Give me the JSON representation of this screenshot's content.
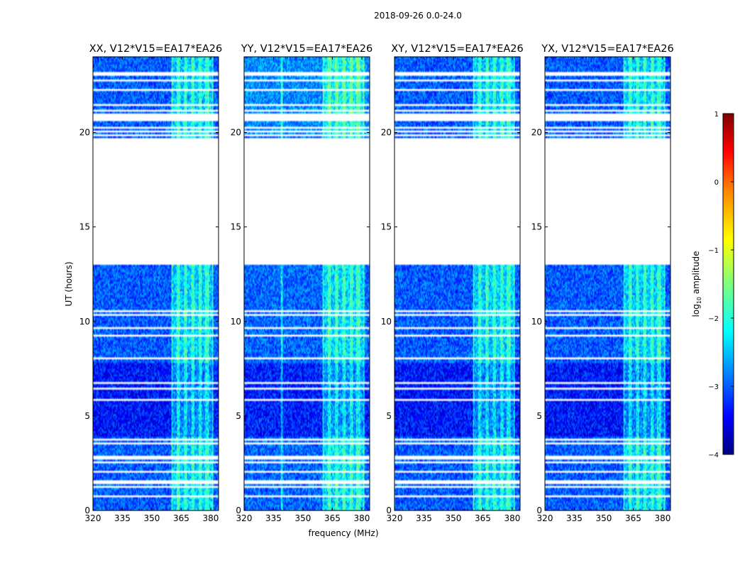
{
  "chart_data": {
    "type": "heatmap",
    "suptitle": "2018-09-26 0.0-24.0",
    "xlabel": "frequency (MHz)",
    "ylabel": "UT (hours)",
    "xlim": [
      320,
      384
    ],
    "ylim": [
      0,
      24
    ],
    "xticks": [
      "320",
      "335",
      "350",
      "365",
      "380"
    ],
    "yticks": [
      "0",
      "5",
      "10",
      "15",
      "20"
    ],
    "panels": [
      {
        "title": "XX, V12*V15=EA17*EA26"
      },
      {
        "title": "YY, V12*V15=EA17*EA26"
      },
      {
        "title": "XY, V12*V15=EA17*EA26"
      },
      {
        "title": "YX, V12*V15=EA17*EA26"
      }
    ],
    "rfi_band_mhz": [
      360,
      381
    ],
    "data_gap_hours": [
      13.0,
      19.8
    ],
    "colorbar": {
      "label": "log10 amplitude",
      "range": [
        -4,
        1
      ],
      "ticks": [
        "1",
        "0",
        "−1",
        "−2",
        "−3",
        "−4"
      ],
      "colormap": [
        "#00007f",
        "#0000ff",
        "#007fff",
        "#00ffff",
        "#7fff7f",
        "#ffff00",
        "#ff7f00",
        "#ff0000",
        "#7f0000"
      ]
    }
  }
}
